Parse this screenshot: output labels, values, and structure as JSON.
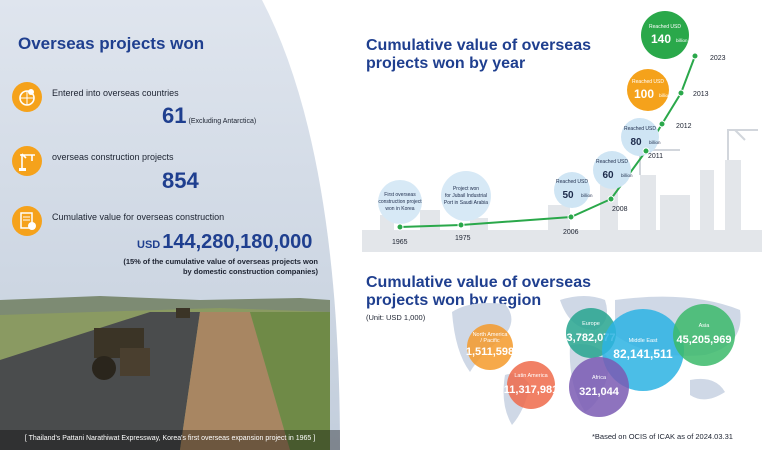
{
  "left": {
    "title": "Overseas projects won",
    "stats": [
      {
        "label": "Entered into overseas countries",
        "value": "61",
        "note": "(Excluding Antarctica)",
        "icon": "globe-pin-icon"
      },
      {
        "label": "overseas construction projects",
        "value": "854",
        "icon": "crane-icon"
      },
      {
        "label": "Cumulative value for overseas construction",
        "prefix": "USD",
        "value": "144,280,180,000",
        "icon": "document-coin-icon"
      }
    ],
    "note_line1": "(15% of the cumulative value of overseas projects won",
    "note_line2": "by domestic construction companies)",
    "caption": "[ Thailand's Pattani Narathiwat Expressway, Korea's first overseas expansion project in 1965 ]"
  },
  "year_chart": {
    "title_line1": "Cumulative value of overseas",
    "title_line2": "projects won by year",
    "events": [
      {
        "year": "1965",
        "lines": [
          "First overseas",
          "construction project",
          "won in Korea"
        ]
      },
      {
        "year": "1975",
        "lines": [
          "Project won",
          "for Jubail Industrial",
          "Port in Saudi Arabia"
        ]
      },
      {
        "year": "2006",
        "label": "Reached USD",
        "value": "50",
        "unit": "billion"
      },
      {
        "year": "2008",
        "label": "Reached USD",
        "value": "60",
        "unit": "billion"
      },
      {
        "year": "2011",
        "label": "Reached USD",
        "value": "80",
        "unit": "billion"
      },
      {
        "year": "2012",
        "label": "",
        "value": "",
        "unit": ""
      },
      {
        "year": "2013",
        "label": "Reached USD",
        "value": "100",
        "unit": "billion"
      },
      {
        "year": "2023",
        "label": "Reached USD",
        "value": "140",
        "unit": "billion"
      }
    ]
  },
  "region_chart": {
    "title_line1": "Cumulative value of overseas",
    "title_line2": "projects won by region",
    "unit": "(Unit: USD 1,000)",
    "regions": [
      {
        "name": "North America / Pacific",
        "name_lines": [
          "North America",
          "/ Pacific"
        ],
        "value": "1,511,598",
        "color": "#f59a2a"
      },
      {
        "name": "Europe",
        "name_lines": [
          "Europe"
        ],
        "value": "3,782,077",
        "color": "#26a58e"
      },
      {
        "name": "Middle East",
        "name_lines": [
          "Middle East"
        ],
        "value": "82,141,511",
        "color": "#2bb3e3"
      },
      {
        "name": "Asia",
        "name_lines": [
          "Asia"
        ],
        "value": "45,205,969",
        "color": "#3bba6a"
      },
      {
        "name": "Latin America",
        "name_lines": [
          "Latin America"
        ],
        "value": "11,317,981",
        "color": "#ee6a4a"
      },
      {
        "name": "Africa",
        "name_lines": [
          "Africa"
        ],
        "value": "321,044",
        "color": "#7a5bb3"
      }
    ],
    "footnote": "*Based on OCIS of ICAK as of 2024.03.31"
  }
}
